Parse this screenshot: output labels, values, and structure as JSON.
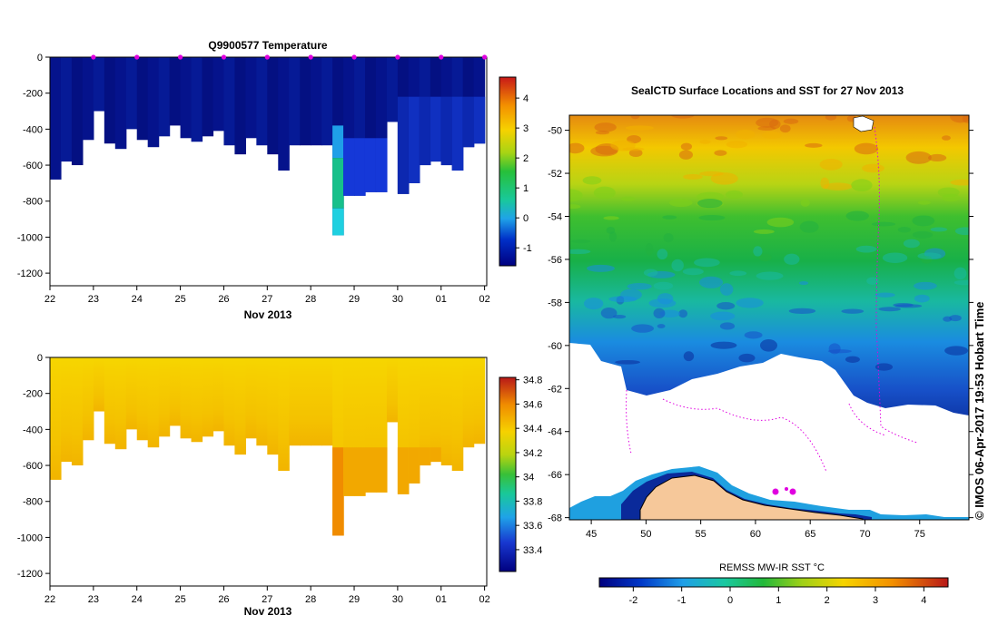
{
  "chart_data": [
    {
      "type": "heatmap",
      "title": "Q9900577  Temperature",
      "xlabel": "Nov 2013",
      "ylabel": "",
      "x_ticks": [
        "22",
        "23",
        "24",
        "25",
        "26",
        "27",
        "28",
        "29",
        "30",
        "01",
        "02"
      ],
      "x_range": [
        22,
        32.05
      ],
      "ylim": [
        -1270,
        0
      ],
      "y_ticks": [
        0,
        -200,
        -400,
        -600,
        -800,
        -1000,
        -1200
      ],
      "colorbar_ticks": [
        "4",
        "3",
        "2",
        "1",
        "0",
        "-1"
      ],
      "colorbar_values": [
        4,
        3,
        2,
        1,
        0,
        -1
      ],
      "colorbar_range": [
        -1.6,
        4.7
      ],
      "profile_markers_day": [
        23,
        24,
        25,
        26,
        27,
        28,
        29,
        30,
        31,
        32
      ],
      "profiles": [
        {
          "day": 22.0,
          "bottom": -680
        },
        {
          "day": 22.25,
          "bottom": -580
        },
        {
          "day": 22.5,
          "bottom": -600
        },
        {
          "day": 22.75,
          "bottom": -460
        },
        {
          "day": 23.0,
          "bottom": -300
        },
        {
          "day": 23.25,
          "bottom": -480
        },
        {
          "day": 23.5,
          "bottom": -510
        },
        {
          "day": 23.75,
          "bottom": -400
        },
        {
          "day": 24.0,
          "bottom": -460
        },
        {
          "day": 24.25,
          "bottom": -500
        },
        {
          "day": 24.5,
          "bottom": -440
        },
        {
          "day": 24.75,
          "bottom": -380
        },
        {
          "day": 25.0,
          "bottom": -450
        },
        {
          "day": 25.25,
          "bottom": -470
        },
        {
          "day": 25.5,
          "bottom": -440
        },
        {
          "day": 25.75,
          "bottom": -410
        },
        {
          "day": 26.0,
          "bottom": -490
        },
        {
          "day": 26.25,
          "bottom": -540
        },
        {
          "day": 26.5,
          "bottom": -450
        },
        {
          "day": 26.75,
          "bottom": -490
        },
        {
          "day": 27.0,
          "bottom": -540
        },
        {
          "day": 27.25,
          "bottom": -630
        },
        {
          "day": 27.5,
          "bottom": -490
        },
        {
          "day": 27.75,
          "bottom": -490
        },
        {
          "day": 28.0,
          "bottom": -490
        },
        {
          "day": 28.25,
          "bottom": -490
        },
        {
          "day": 28.5,
          "bottom": -990
        },
        {
          "day": 28.75,
          "bottom": -770
        },
        {
          "day": 29.0,
          "bottom": -770
        },
        {
          "day": 29.25,
          "bottom": -750
        },
        {
          "day": 29.5,
          "bottom": -750
        },
        {
          "day": 29.75,
          "bottom": -360
        },
        {
          "day": 30.0,
          "bottom": -760
        },
        {
          "day": 30.25,
          "bottom": -700
        },
        {
          "day": 30.5,
          "bottom": -600
        },
        {
          "day": 30.75,
          "bottom": -580
        },
        {
          "day": 31.0,
          "bottom": -600
        },
        {
          "day": 31.25,
          "bottom": -630
        },
        {
          "day": 31.5,
          "bottom": -500
        },
        {
          "day": 31.75,
          "bottom": -480
        }
      ]
    },
    {
      "type": "heatmap",
      "title": "",
      "xlabel": "Nov 2013",
      "ylabel": "",
      "x_ticks": [
        "22",
        "23",
        "24",
        "25",
        "26",
        "27",
        "28",
        "29",
        "30",
        "01",
        "02"
      ],
      "x_range": [
        22,
        32.05
      ],
      "ylim": [
        -1270,
        0
      ],
      "y_ticks": [
        0,
        -200,
        -400,
        -600,
        -800,
        -1000,
        -1200
      ],
      "colorbar_ticks": [
        "34.8",
        "34.6",
        "34.4",
        "34.2",
        "34",
        "33.8",
        "33.6",
        "33.4"
      ],
      "colorbar_values": [
        34.8,
        34.6,
        34.4,
        34.2,
        34.0,
        33.8,
        33.6,
        33.4
      ],
      "colorbar_range": [
        33.22,
        34.82
      ]
    },
    {
      "type": "heatmap",
      "title": "SealCTD Surface Locations and SST for 27 Nov 2013",
      "xlabel": "",
      "ylabel": "",
      "x_range": [
        43,
        79.5
      ],
      "y_range": [
        -68.1,
        -49.3
      ],
      "x_ticks": [
        45,
        50,
        55,
        60,
        65,
        70,
        75
      ],
      "y_ticks": [
        -50,
        -52,
        -54,
        -56,
        -58,
        -60,
        -62,
        -64,
        -66,
        -68
      ],
      "colorbar_label": "REMSS MW-IR SST °C",
      "colorbar_ticks": [
        "-2",
        "-1",
        "0",
        "1",
        "2",
        "3",
        "4"
      ],
      "colorbar_values": [
        -2,
        -1,
        0,
        1,
        2,
        3,
        4
      ],
      "colorbar_range": [
        -2.7,
        4.5
      ],
      "credit": "© IMOS 06-Apr-2017 19:53 Hobart Time"
    }
  ]
}
